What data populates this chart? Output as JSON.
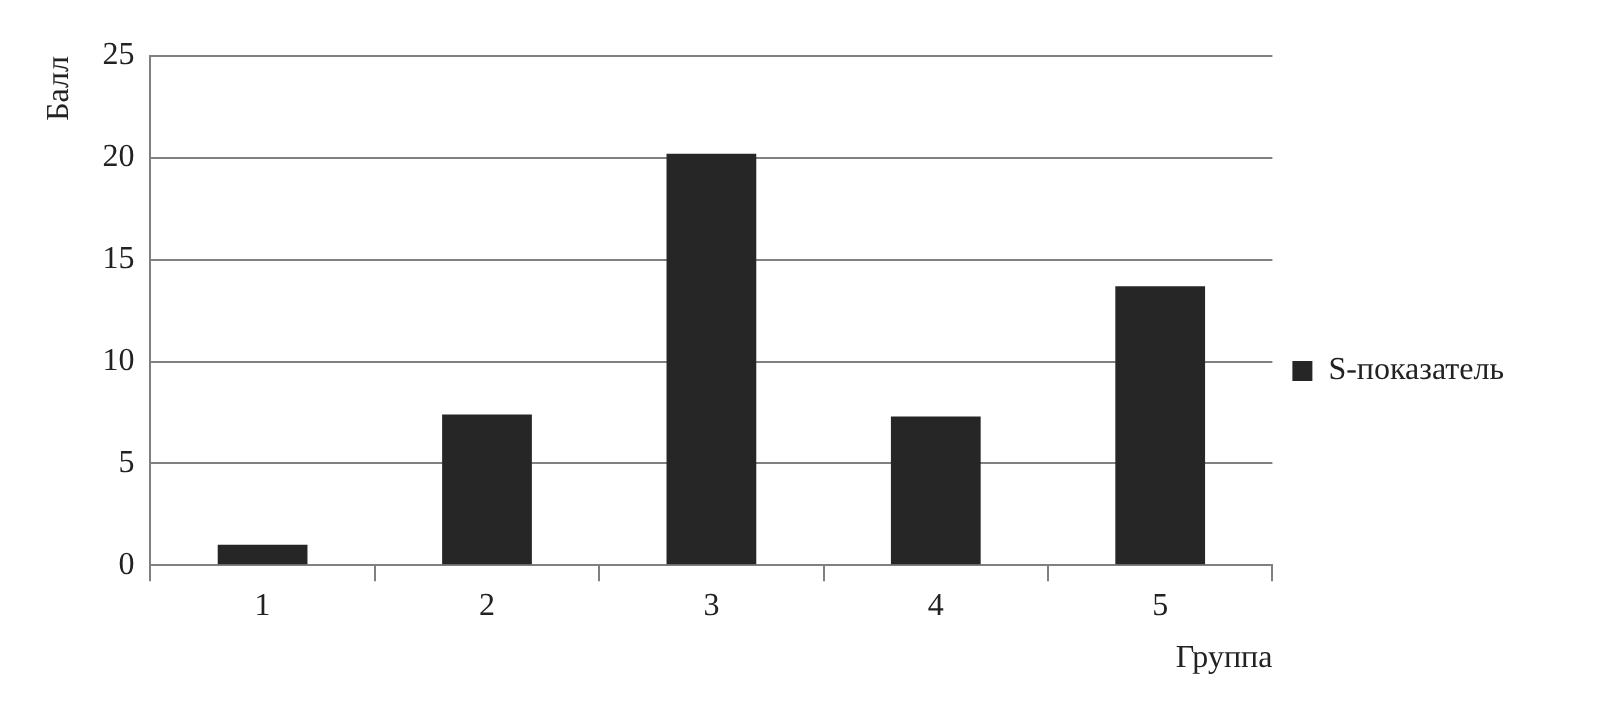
{
  "chart_data": {
    "type": "bar",
    "xlabel": "Группа",
    "ylabel": "Балл",
    "categories": [
      "1",
      "2",
      "3",
      "4",
      "5"
    ],
    "series": [
      {
        "name": "S-показатель",
        "color": "#262626",
        "values": [
          1.0,
          7.4,
          20.2,
          7.3,
          13.7
        ]
      }
    ],
    "ylim": [
      0,
      25
    ],
    "yticks": [
      0,
      5,
      10,
      15,
      20,
      25
    ],
    "grid": "y",
    "legend": "right"
  }
}
